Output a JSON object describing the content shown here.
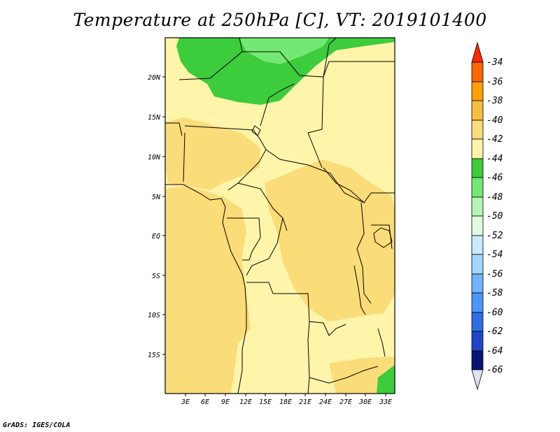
{
  "title": "Temperature at 250hPa [C], VT: 2019101400",
  "footer": "GrADS: IGES/COLA",
  "map": {
    "lat_labels": [
      "20N",
      "15N",
      "10N",
      "5N",
      "EQ",
      "5S",
      "10S",
      "15S"
    ],
    "lat_values": [
      20,
      15,
      10,
      5,
      0,
      -5,
      -10,
      -15
    ],
    "lon_labels": [
      "3E",
      "6E",
      "9E",
      "12E",
      "15E",
      "18E",
      "21E",
      "24E",
      "27E",
      "30E",
      "33E"
    ],
    "lon_values": [
      3,
      6,
      9,
      12,
      15,
      18,
      21,
      24,
      27,
      30,
      33
    ],
    "lon_range": [
      0,
      34
    ],
    "lat_range": [
      -20,
      25
    ]
  },
  "colorbar": {
    "labels": [
      "-34",
      "-36",
      "-38",
      "-40",
      "-42",
      "-44",
      "-46",
      "-48",
      "-50",
      "-52",
      "-54",
      "-56",
      "-58",
      "-60",
      "-62",
      "-64",
      "-66"
    ],
    "colors": [
      "#ff2a00",
      "#ff6600",
      "#ffa000",
      "#f5be3c",
      "#fadc78",
      "#fff5aa",
      "#3ccc3c",
      "#73e873",
      "#b4f5b4",
      "#e1fae1",
      "#c8ebff",
      "#a0d7ff",
      "#73b4ff",
      "#4b96fa",
      "#2d6ee6",
      "#1e46c8",
      "#1432a0",
      "#0a1478",
      "#e1e1f5"
    ]
  },
  "colors": {
    "fill_42": "#fff5aa",
    "fill_40": "#fadc78",
    "fill_44": "#3ccc3c",
    "fill_46": "#73e873"
  }
}
